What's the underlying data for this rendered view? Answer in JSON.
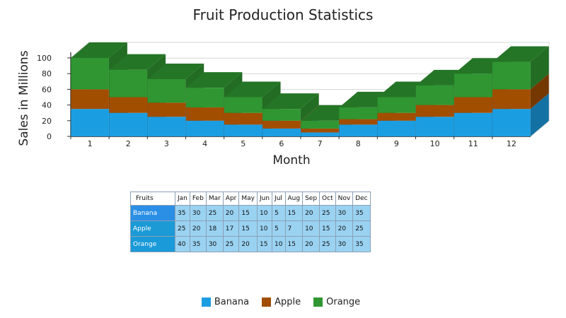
{
  "chart_data": {
    "type": "bar",
    "stacked": true,
    "three_d": true,
    "title": "Fruit Production Statistics",
    "xlabel": "Month",
    "ylabel": "Sales in Millions",
    "ylim": [
      0,
      100
    ],
    "yticks": [
      0,
      20,
      40,
      60,
      80,
      100
    ],
    "grid": true,
    "legend_position": "bottom",
    "categories": [
      "1",
      "2",
      "3",
      "4",
      "5",
      "6",
      "7",
      "8",
      "9",
      "10",
      "11",
      "12"
    ],
    "series": [
      {
        "name": "Banana",
        "values": [
          35,
          30,
          25,
          20,
          15,
          10,
          5,
          15,
          20,
          25,
          30,
          35
        ],
        "color": "#1b9de2"
      },
      {
        "name": "Apple",
        "values": [
          25,
          20,
          18,
          17,
          15,
          10,
          5,
          7,
          10,
          15,
          20,
          25
        ],
        "color": "#a14e00"
      },
      {
        "name": "Orange",
        "values": [
          40,
          35,
          30,
          25,
          20,
          15,
          10,
          15,
          20,
          25,
          30,
          35
        ],
        "color": "#2f9631"
      }
    ]
  },
  "table": {
    "corner_label": "Fruits",
    "months": [
      "Jan",
      "Feb",
      "Mar",
      "Apr",
      "May",
      "Jun",
      "Jul",
      "Aug",
      "Sep",
      "Oct",
      "Nov",
      "Dec"
    ],
    "rows": [
      {
        "label": "Banana",
        "label_color": "#2b8fe5",
        "values": [
          "35",
          "30",
          "25",
          "20",
          "15",
          "10",
          "5",
          "15",
          "20",
          "25",
          "30",
          "35"
        ]
      },
      {
        "label": "Apple",
        "label_color": "#1b9ad6",
        "values": [
          "25",
          "20",
          "18",
          "17",
          "15",
          "10",
          "5",
          "7",
          "10",
          "15",
          "20",
          "25"
        ]
      },
      {
        "label": "Orange",
        "label_color": "#1a9ad8",
        "values": [
          "40",
          "35",
          "30",
          "25",
          "20",
          "15",
          "10",
          "15",
          "20",
          "25",
          "30",
          "35"
        ]
      }
    ]
  }
}
